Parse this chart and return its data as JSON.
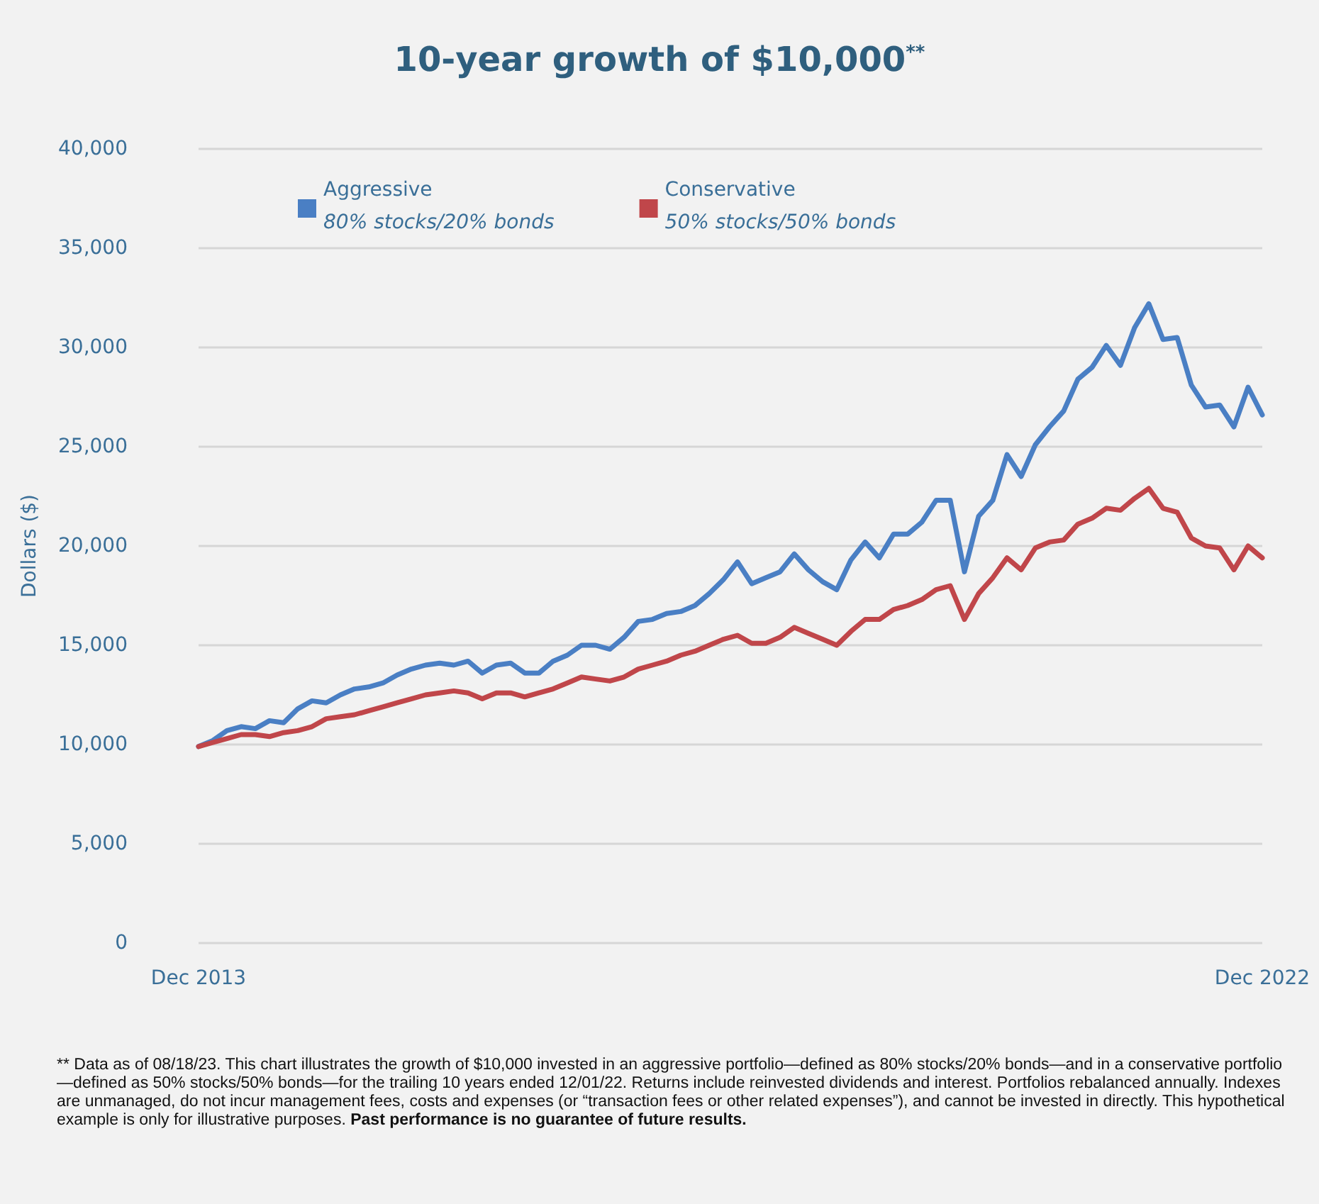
{
  "chart_data": {
    "type": "line",
    "title": "10-year growth of $10,000$^{**}$",
    "ylabel": "Dollars ($)",
    "categories": [
      "Dec 2013",
      null,
      null,
      null,
      null,
      null,
      null,
      null,
      null,
      null,
      null,
      null,
      null,
      null,
      null,
      null,
      null,
      null,
      null,
      null,
      null,
      null,
      null,
      null,
      null,
      null,
      null,
      null,
      null,
      null,
      null,
      null,
      null,
      null,
      null,
      null,
      null,
      null,
      null,
      null,
      null,
      null,
      null,
      null,
      null,
      null,
      null,
      null,
      null,
      null,
      null,
      null,
      null,
      null,
      null,
      null,
      null,
      null,
      null,
      null,
      null,
      null,
      null,
      null,
      null,
      null,
      null,
      null,
      null,
      null,
      null,
      null,
      null,
      null,
      null,
      "Dec 2022"
    ],
    "series": [
      {
        "name": "Aggressive\n80% stocks/20% bonds",
        "color": "#4a7fc4",
        "values": [
          9900,
          10200,
          10700,
          10900,
          10800,
          11200,
          11100,
          11800,
          12200,
          12100,
          12500,
          12800,
          12900,
          13100,
          13500,
          13800,
          14000,
          14100,
          14000,
          14200,
          13600,
          14000,
          14100,
          13600,
          13600,
          14200,
          14500,
          15000,
          15000,
          14800,
          15400,
          16200,
          16300,
          16600,
          16700,
          17000,
          17600,
          18300,
          19200,
          18100,
          18400,
          18700,
          19600,
          18800,
          18200,
          17800,
          19300,
          20200,
          19400,
          20600,
          20600,
          21200,
          22300,
          22300,
          18700,
          21500,
          22300,
          24600,
          23500,
          25100,
          26000,
          26800,
          28400,
          29000,
          30100,
          29100,
          31000,
          32200,
          30400,
          30500,
          28100,
          27000,
          27100,
          26000,
          28000,
          26600
        ]
      },
      {
        "name": "Conservative\n50% stocks/50% bonds",
        "color": "#c0464a",
        "values": [
          9900,
          10100,
          10300,
          10500,
          10500,
          10400,
          10600,
          10700,
          10900,
          11300,
          11400,
          11500,
          11700,
          11900,
          12100,
          12300,
          12500,
          12600,
          12700,
          12600,
          12300,
          12600,
          12600,
          12400,
          12600,
          12800,
          13100,
          13400,
          13300,
          13200,
          13400,
          13800,
          14000,
          14200,
          14500,
          14700,
          15000,
          15300,
          15500,
          15100,
          15100,
          15400,
          15900,
          15600,
          15300,
          15000,
          15700,
          16300,
          16300,
          16800,
          17000,
          17300,
          17800,
          18000,
          16300,
          17600,
          18400,
          19400,
          18800,
          19900,
          20200,
          20300,
          21100,
          21400,
          21900,
          21800,
          22400,
          22900,
          21900,
          21700,
          20400,
          20000,
          19900,
          18800,
          20000,
          19400
        ]
      }
    ],
    "ylim": [
      0,
      40000
    ],
    "yticks": [
      0,
      {
        "value": 5000,
        "label": "5,000"
      },
      {
        "value": 10000,
        "label": "10,000"
      },
      {
        "value": 15000,
        "label": "15,000"
      },
      {
        "value": 20000,
        "label": "20,000"
      },
      {
        "value": 25000,
        "label": "25,000"
      },
      {
        "value": 30000,
        "label": "30,000"
      },
      {
        "value": 35000,
        "label": "35,000"
      },
      {
        "value": 40000,
        "label": "40,000"
      }
    ],
    "grid": "y",
    "legend": "top left",
    "marker": "none",
    "line_style": "solid",
    "annotations": [
      "** Data as of 08/18/23. This chart illustrates the growth of $10,000 invested in an aggressive portfolio—defined as 80% stocks/20% bonds—and in a conservative portfolio—defined as 50% stocks/50% bonds—for the trailing 10 years ended 12/01/22. Returns include reinvested dividends and interest. Portfolios rebalanced annually. Indexes are unmanaged, do not incur management fees, costs and expenses (or “transaction fees or other related expenses”), and cannot be invested in directly. This hypothetical example is only for illustrative purposes.",
      "Past performance is no guarantee of future results."
    ]
  }
}
